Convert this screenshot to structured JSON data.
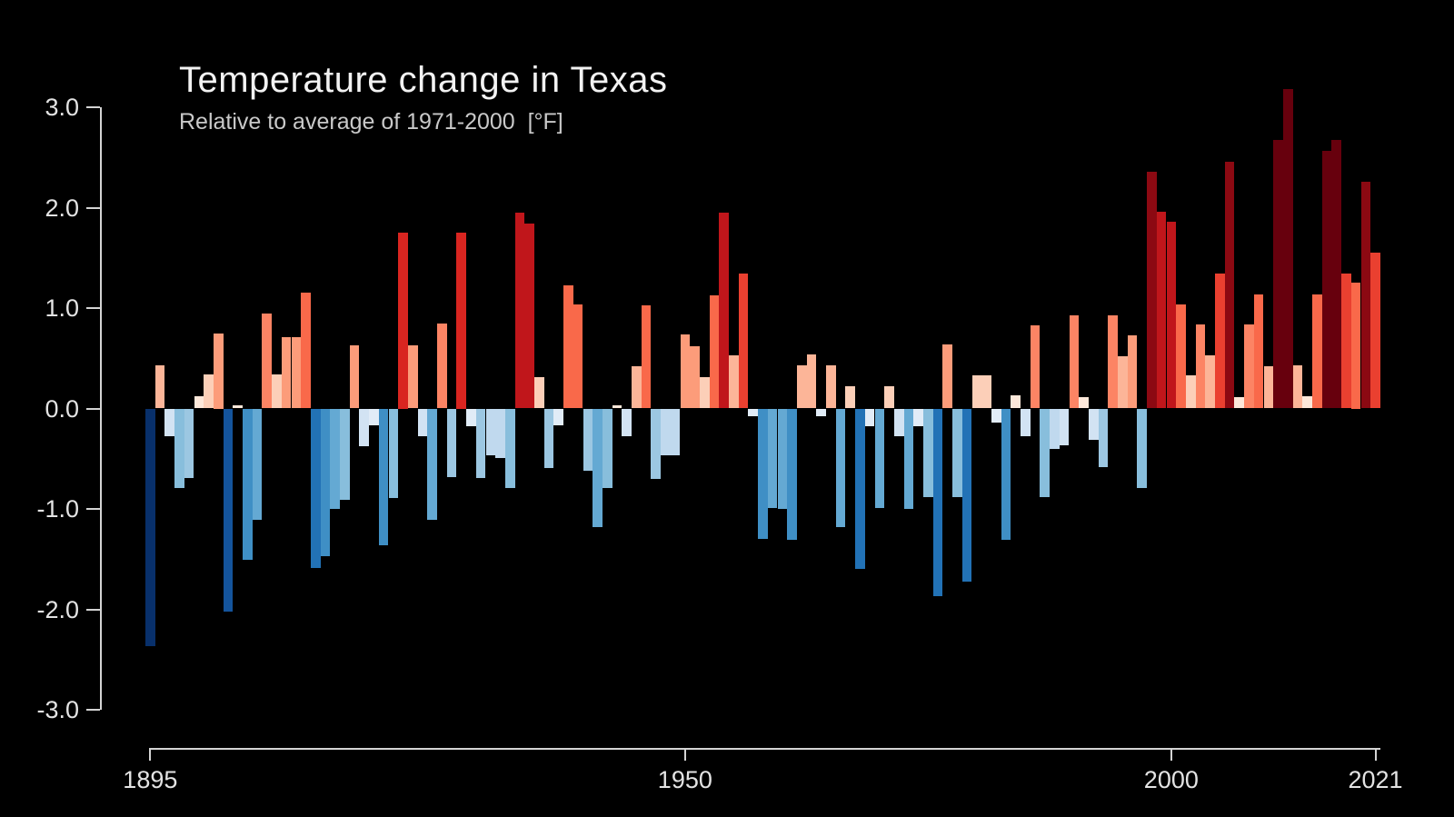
{
  "header": {
    "title": "Temperature change in Texas",
    "subtitle": "Relative to average of 1971-2000  [°F]"
  },
  "chart_data": {
    "type": "bar",
    "title": "Temperature change in Texas",
    "subtitle": "Relative to average of 1971-2000  [°F]",
    "unit": "°F",
    "baseline_period": "1971-2000",
    "xlabel": "",
    "ylabel": "",
    "ylim": [
      -3.3,
      3.3
    ],
    "grid": false,
    "legend": false,
    "year_start": 1895,
    "year_end": 2021,
    "y_ticks": [
      {
        "value": 3.0,
        "label": "3.0"
      },
      {
        "value": 2.0,
        "label": "2.0"
      },
      {
        "value": 1.0,
        "label": "1.0"
      },
      {
        "value": 0.0,
        "label": "0.0"
      },
      {
        "value": -1.0,
        "label": "-1.0"
      },
      {
        "value": -2.0,
        "label": "-2.0"
      },
      {
        "value": -3.0,
        "label": "-3.0"
      }
    ],
    "x_ticks": [
      {
        "year": 1895,
        "label": "1895"
      },
      {
        "year": 1950,
        "label": "1950"
      },
      {
        "year": 2000,
        "label": "2000"
      },
      {
        "year": 2021,
        "label": "2021"
      }
    ],
    "values": [
      -2.37,
      0.43,
      -0.28,
      -0.79,
      -0.69,
      0.12,
      0.34,
      0.75,
      -2.02,
      0.03,
      -1.51,
      -1.11,
      0.95,
      0.34,
      0.71,
      0.71,
      1.15,
      -1.59,
      -1.47,
      -1.0,
      -0.91,
      0.63,
      -0.38,
      -0.17,
      -1.36,
      -0.89,
      1.75,
      0.63,
      -0.28,
      -1.11,
      0.85,
      -0.68,
      1.75,
      -0.18,
      -0.69,
      -0.47,
      -0.49,
      -0.79,
      1.95,
      1.84,
      0.31,
      -0.59,
      -0.17,
      1.23,
      1.04,
      -0.62,
      -1.18,
      -0.79,
      0.03,
      -0.28,
      0.42,
      1.03,
      -0.7,
      -0.47,
      -0.47,
      0.74,
      0.62,
      0.31,
      1.13,
      1.95,
      0.53,
      1.34,
      -0.08,
      -1.3,
      -0.99,
      -1.0,
      -1.31,
      0.43,
      0.54,
      -0.08,
      0.43,
      -1.18,
      0.22,
      -1.6,
      -0.18,
      -0.99,
      0.22,
      -0.28,
      -1.0,
      -0.18,
      -0.88,
      -1.87,
      0.64,
      -0.88,
      -1.72,
      0.33,
      0.33,
      -0.14,
      -1.31,
      0.13,
      -0.28,
      0.83,
      -0.88,
      -0.4,
      -0.37,
      0.93,
      0.11,
      -0.31,
      -0.58,
      0.93,
      0.52,
      0.73,
      -0.79,
      2.36,
      1.96,
      1.86,
      1.04,
      0.33,
      0.84,
      0.53,
      1.34,
      2.46,
      0.11,
      0.84,
      1.14,
      0.42,
      2.67,
      3.18,
      0.43,
      0.12,
      1.14,
      2.57,
      2.67,
      1.34,
      1.25,
      2.26,
      1.55
    ],
    "palette": [
      {
        "max": -2.2,
        "color": "#08306b"
      },
      {
        "max": -1.9,
        "color": "#14549c"
      },
      {
        "max": -1.55,
        "color": "#2272b6"
      },
      {
        "max": -1.25,
        "color": "#3f8fc5"
      },
      {
        "max": -0.95,
        "color": "#64a9d3"
      },
      {
        "max": -0.72,
        "color": "#88bedc"
      },
      {
        "max": -0.55,
        "color": "#9cc7e2"
      },
      {
        "max": -0.4,
        "color": "#c0d9ee"
      },
      {
        "max": -0.22,
        "color": "#d2e3f3"
      },
      {
        "max": -0.001,
        "color": "#e1ecf7"
      },
      {
        "max": 0.16,
        "color": "#fde8da"
      },
      {
        "max": 0.38,
        "color": "#fccfb8"
      },
      {
        "max": 0.58,
        "color": "#fcb598"
      },
      {
        "max": 0.8,
        "color": "#fc9c7a"
      },
      {
        "max": 1.0,
        "color": "#fc8464"
      },
      {
        "max": 1.3,
        "color": "#f9694a"
      },
      {
        "max": 1.6,
        "color": "#ea4030"
      },
      {
        "max": 1.8,
        "color": "#d92520"
      },
      {
        "max": 2.1,
        "color": "#c0161b"
      },
      {
        "max": 2.55,
        "color": "#8c0912"
      },
      {
        "max": 99,
        "color": "#67000d"
      }
    ],
    "colors": {
      "background": "#000000",
      "axis": "#d4d4d4",
      "tick_label": "#e3e3e3",
      "title": "#f2f2f2",
      "subtitle": "#c9c9c9"
    }
  }
}
